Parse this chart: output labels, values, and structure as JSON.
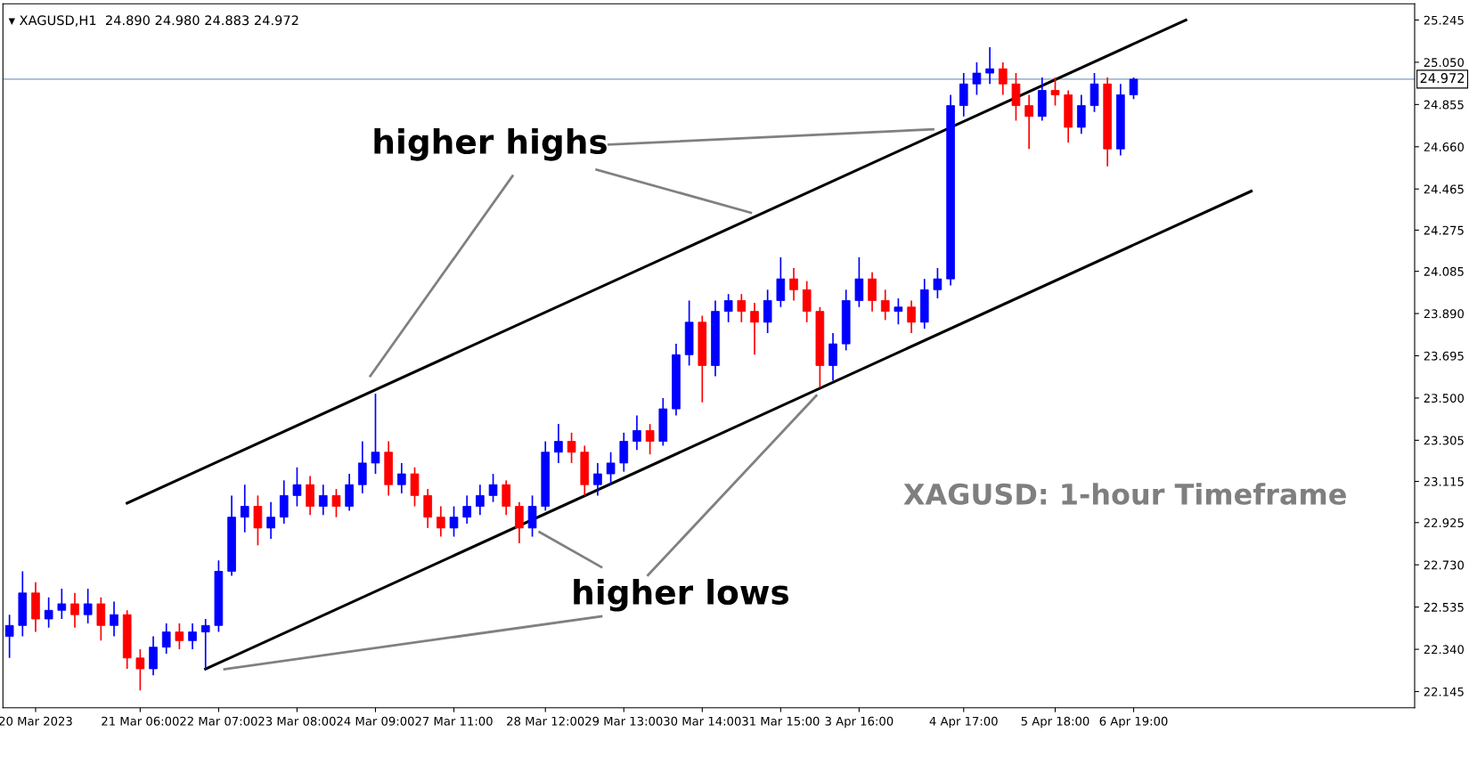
{
  "chart_data": {
    "type": "candlestick",
    "categories": [
      null,
      null,
      "20 Mar 2023",
      null,
      null,
      null,
      null,
      null,
      null,
      null,
      "21 Mar 06:00",
      null,
      null,
      null,
      null,
      null,
      "22 Mar 07:00",
      null,
      null,
      null,
      null,
      null,
      "23 Mar 08:00",
      null,
      null,
      null,
      null,
      null,
      "24 Mar 09:00",
      null,
      null,
      null,
      null,
      null,
      "27 Mar 11:00",
      null,
      null,
      null,
      null,
      null,
      null,
      "28 Mar 12:00",
      null,
      null,
      null,
      null,
      null,
      "29 Mar 13:00",
      null,
      null,
      null,
      null,
      null,
      "30 Mar 14:00",
      null,
      null,
      null,
      null,
      null,
      "31 Mar 15:00",
      null,
      null,
      null,
      null,
      null,
      "3 Apr 16:00",
      null,
      null,
      null,
      null,
      null,
      null,
      null,
      "4 Apr 17:00",
      null,
      null,
      null,
      null,
      null,
      null,
      "5 Apr 18:00",
      null,
      null,
      null,
      null,
      null,
      "6 Apr 19:00",
      null,
      null,
      null,
      null,
      null,
      null,
      null,
      null,
      null,
      null,
      null,
      null,
      null,
      null,
      null,
      null,
      null,
      null,
      null,
      null,
      null
    ],
    "ohlc": [
      [
        22.4,
        22.5,
        22.3,
        22.45
      ],
      [
        22.45,
        22.7,
        22.4,
        22.6
      ],
      [
        22.6,
        22.65,
        22.42,
        22.48
      ],
      [
        22.48,
        22.58,
        22.44,
        22.52
      ],
      [
        22.52,
        22.62,
        22.48,
        22.55
      ],
      [
        22.55,
        22.6,
        22.44,
        22.5
      ],
      [
        22.5,
        22.62,
        22.46,
        22.55
      ],
      [
        22.55,
        22.58,
        22.38,
        22.45
      ],
      [
        22.45,
        22.56,
        22.4,
        22.5
      ],
      [
        22.5,
        22.52,
        22.25,
        22.3
      ],
      [
        22.3,
        22.34,
        22.15,
        22.25
      ],
      [
        22.25,
        22.4,
        22.22,
        22.35
      ],
      [
        22.35,
        22.46,
        22.32,
        22.42
      ],
      [
        22.42,
        22.46,
        22.34,
        22.38
      ],
      [
        22.38,
        22.46,
        22.34,
        22.42
      ],
      [
        22.42,
        22.48,
        22.25,
        22.45
      ],
      [
        22.45,
        22.75,
        22.42,
        22.7
      ],
      [
        22.7,
        23.05,
        22.68,
        22.95
      ],
      [
        22.95,
        23.1,
        22.88,
        23.0
      ],
      [
        23.0,
        23.05,
        22.82,
        22.9
      ],
      [
        22.9,
        23.02,
        22.85,
        22.95
      ],
      [
        22.95,
        23.12,
        22.92,
        23.05
      ],
      [
        23.05,
        23.18,
        23.0,
        23.1
      ],
      [
        23.1,
        23.14,
        22.96,
        23.0
      ],
      [
        23.0,
        23.1,
        22.96,
        23.05
      ],
      [
        23.05,
        23.08,
        22.95,
        23.0
      ],
      [
        23.0,
        23.15,
        22.98,
        23.1
      ],
      [
        23.1,
        23.3,
        23.06,
        23.2
      ],
      [
        23.2,
        23.52,
        23.15,
        23.25
      ],
      [
        23.25,
        23.3,
        23.05,
        23.1
      ],
      [
        23.1,
        23.2,
        23.06,
        23.15
      ],
      [
        23.15,
        23.18,
        23.0,
        23.05
      ],
      [
        23.05,
        23.08,
        22.9,
        22.95
      ],
      [
        22.95,
        23.0,
        22.86,
        22.9
      ],
      [
        22.9,
        23.0,
        22.86,
        22.95
      ],
      [
        22.95,
        23.05,
        22.92,
        23.0
      ],
      [
        23.0,
        23.1,
        22.96,
        23.05
      ],
      [
        23.05,
        23.15,
        23.02,
        23.1
      ],
      [
        23.1,
        23.12,
        22.96,
        23.0
      ],
      [
        23.0,
        23.02,
        22.83,
        22.9
      ],
      [
        22.9,
        23.05,
        22.86,
        23.0
      ],
      [
        23.0,
        23.3,
        22.98,
        23.25
      ],
      [
        23.25,
        23.38,
        23.2,
        23.3
      ],
      [
        23.3,
        23.34,
        23.2,
        23.25
      ],
      [
        23.25,
        23.28,
        23.05,
        23.1
      ],
      [
        23.1,
        23.2,
        23.05,
        23.15
      ],
      [
        23.15,
        23.25,
        23.1,
        23.2
      ],
      [
        23.2,
        23.34,
        23.16,
        23.3
      ],
      [
        23.3,
        23.42,
        23.26,
        23.35
      ],
      [
        23.35,
        23.38,
        23.24,
        23.3
      ],
      [
        23.3,
        23.5,
        23.28,
        23.45
      ],
      [
        23.45,
        23.75,
        23.42,
        23.7
      ],
      [
        23.7,
        23.95,
        23.65,
        23.85
      ],
      [
        23.85,
        23.88,
        23.48,
        23.65
      ],
      [
        23.65,
        23.95,
        23.6,
        23.9
      ],
      [
        23.9,
        23.98,
        23.85,
        23.95
      ],
      [
        23.95,
        23.98,
        23.85,
        23.9
      ],
      [
        23.9,
        23.94,
        23.7,
        23.85
      ],
      [
        23.85,
        24.0,
        23.8,
        23.95
      ],
      [
        23.95,
        24.15,
        23.92,
        24.05
      ],
      [
        24.05,
        24.1,
        23.95,
        24.0
      ],
      [
        24.0,
        24.04,
        23.85,
        23.9
      ],
      [
        23.9,
        23.92,
        23.55,
        23.65
      ],
      [
        23.65,
        23.8,
        23.58,
        23.75
      ],
      [
        23.75,
        24.0,
        23.72,
        23.95
      ],
      [
        23.95,
        24.15,
        23.92,
        24.05
      ],
      [
        24.05,
        24.08,
        23.9,
        23.95
      ],
      [
        23.95,
        24.0,
        23.86,
        23.9
      ],
      [
        23.9,
        23.96,
        23.84,
        23.92
      ],
      [
        23.92,
        23.95,
        23.8,
        23.85
      ],
      [
        23.85,
        24.05,
        23.82,
        24.0
      ],
      [
        24.0,
        24.1,
        23.96,
        24.05
      ],
      [
        24.05,
        24.9,
        24.02,
        24.85
      ],
      [
        24.85,
        25.0,
        24.8,
        24.95
      ],
      [
        24.95,
        25.05,
        24.9,
        25.0
      ],
      [
        25.0,
        25.12,
        24.95,
        25.02
      ],
      [
        25.02,
        25.05,
        24.9,
        24.95
      ],
      [
        24.95,
        25.0,
        24.78,
        24.85
      ],
      [
        24.85,
        24.9,
        24.65,
        24.8
      ],
      [
        24.8,
        24.98,
        24.78,
        24.92
      ],
      [
        24.92,
        24.98,
        24.85,
        24.9
      ],
      [
        24.9,
        24.92,
        24.68,
        24.75
      ],
      [
        24.75,
        24.9,
        24.72,
        24.85
      ],
      [
        24.85,
        25.0,
        24.82,
        24.95
      ],
      [
        24.95,
        24.98,
        24.57,
        24.65
      ],
      [
        24.65,
        24.95,
        24.62,
        24.9
      ],
      [
        24.9,
        24.98,
        24.88,
        24.972
      ],
      null,
      null,
      null,
      null,
      null,
      null,
      null,
      null,
      null,
      null,
      null,
      null,
      null,
      null,
      null,
      null,
      null,
      null,
      null,
      null,
      null
    ],
    "colors": [
      "#0000ff",
      "#0000ff",
      "#ff0000",
      "#0000ff",
      "#0000ff",
      "#ff0000",
      "#0000ff",
      "#ff0000",
      "#0000ff",
      "#ff0000",
      "#ff0000",
      "#0000ff",
      "#0000ff",
      "#ff0000",
      "#0000ff",
      "#0000ff",
      "#0000ff",
      "#0000ff",
      "#0000ff",
      "#ff0000",
      "#0000ff",
      "#0000ff",
      "#0000ff",
      "#ff0000",
      "#0000ff",
      "#ff0000",
      "#0000ff",
      "#0000ff",
      "#0000ff",
      "#ff0000",
      "#0000ff",
      "#ff0000",
      "#ff0000",
      "#ff0000",
      "#0000ff",
      "#0000ff",
      "#0000ff",
      "#0000ff",
      "#ff0000",
      "#ff0000",
      "#0000ff",
      "#0000ff",
      "#0000ff",
      "#ff0000",
      "#ff0000",
      "#0000ff",
      "#0000ff",
      "#0000ff",
      "#0000ff",
      "#ff0000",
      "#0000ff",
      "#0000ff",
      "#0000ff",
      "#ff0000",
      "#0000ff",
      "#0000ff",
      "#ff0000",
      "#ff0000",
      "#0000ff",
      "#0000ff",
      "#ff0000",
      "#ff0000",
      "#ff0000",
      "#0000ff",
      "#0000ff",
      "#0000ff",
      "#ff0000",
      "#ff0000",
      "#0000ff",
      "#ff0000",
      "#0000ff",
      "#0000ff",
      "#0000ff",
      "#0000ff",
      "#0000ff",
      "#0000ff",
      "#ff0000",
      "#ff0000",
      "#ff0000",
      "#0000ff",
      "#ff0000",
      "#ff0000",
      "#0000ff",
      "#0000ff",
      "#ff0000",
      "#0000ff",
      "#0000ff",
      null,
      null,
      null,
      null,
      null,
      null,
      null,
      null,
      null,
      null,
      null,
      null,
      null,
      null,
      null,
      null,
      null,
      null,
      null,
      null,
      null
    ],
    "series": [
      {
        "type": "line",
        "color": "#000000",
        "values": [
          null,
          null,
          null,
          null,
          null,
          null,
          null,
          null,
          null,
          23.015,
          null,
          null,
          null,
          null,
          null,
          null,
          null,
          null,
          null,
          null,
          null,
          null,
          null,
          null,
          null,
          null,
          null,
          null,
          null,
          null,
          null,
          null,
          null,
          null,
          null,
          null,
          null,
          null,
          null,
          null,
          null,
          null,
          null,
          null,
          null,
          null,
          null,
          null,
          null,
          null,
          null,
          null,
          null,
          null,
          null,
          null,
          null,
          null,
          null,
          null,
          null,
          null,
          null,
          null,
          null,
          null,
          null,
          null,
          null,
          null,
          null,
          null,
          null,
          null,
          null,
          null,
          null,
          null,
          null,
          null,
          null,
          null,
          null,
          null,
          null,
          null,
          null,
          null,
          null,
          null,
          25.245,
          null,
          null,
          null,
          null,
          null,
          null,
          null,
          null,
          null,
          null,
          null,
          null,
          null,
          null,
          null,
          null,
          null
        ]
      },
      {
        "type": "line",
        "color": "#000000",
        "values": [
          null,
          null,
          null,
          null,
          null,
          null,
          null,
          null,
          null,
          null,
          null,
          null,
          null,
          null,
          null,
          22.249,
          null,
          null,
          null,
          null,
          null,
          null,
          null,
          null,
          null,
          null,
          null,
          null,
          null,
          null,
          null,
          null,
          null,
          null,
          null,
          null,
          null,
          null,
          null,
          null,
          null,
          null,
          null,
          null,
          null,
          null,
          null,
          null,
          null,
          null,
          null,
          null,
          null,
          null,
          null,
          null,
          null,
          null,
          null,
          null,
          null,
          null,
          null,
          null,
          null,
          null,
          null,
          null,
          null,
          null,
          null,
          null,
          null,
          null,
          null,
          null,
          null,
          null,
          null,
          null,
          null,
          null,
          null,
          null,
          null,
          null,
          null,
          null,
          null,
          null,
          null,
          null,
          null,
          null,
          null,
          24.455,
          null,
          null,
          null,
          null,
          null,
          null,
          null,
          null,
          null,
          null,
          null,
          null
        ]
      }
    ],
    "ylim": [
      22.07,
      25.32
    ],
    "yticks": [
      {
        "value": 22.145,
        "label": "22.145"
      },
      {
        "value": 22.34,
        "label": "22.340"
      },
      {
        "value": 22.535,
        "label": "22.535"
      },
      {
        "value": 22.73,
        "label": "22.730"
      },
      {
        "value": 22.925,
        "label": "22.925"
      },
      {
        "value": 23.115,
        "label": "23.115"
      },
      {
        "value": 23.305,
        "label": "23.305"
      },
      {
        "value": 23.5,
        "label": "23.500"
      },
      {
        "value": 23.695,
        "label": "23.695"
      },
      {
        "value": 23.89,
        "label": "23.890"
      },
      {
        "value": 24.085,
        "label": "24.085"
      },
      {
        "value": 24.275,
        "label": "24.275"
      },
      {
        "value": 24.465,
        "label": "24.465"
      },
      {
        "value": 24.66,
        "label": "24.660"
      },
      {
        "value": 24.855,
        "label": "24.855"
      },
      {
        "value": 25.05,
        "label": "25.050"
      },
      {
        "value": 25.245,
        "label": "25.245"
      }
    ],
    "ref_lines": [
      {
        "axis": "y",
        "value": 24.972,
        "label": "24.972",
        "color": "#7f9cc0"
      }
    ],
    "annotations": [
      "▾ XAGUSD,H1  24.890 24.980 24.883 24.972",
      "higher highs",
      "higher lows",
      "XAGUSD: 1-hour Timeframe"
    ],
    "grid": false,
    "legend": false
  }
}
